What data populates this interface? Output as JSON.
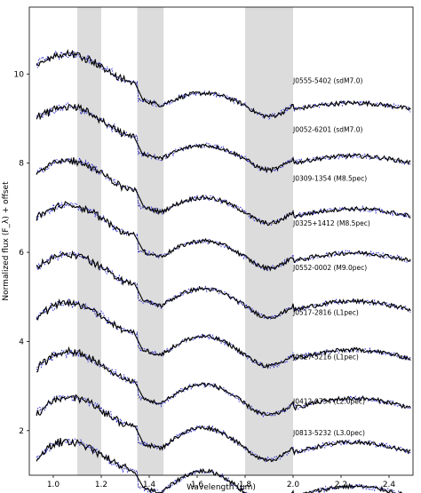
{
  "chart_data": {
    "type": "line",
    "xlabel": "Wavelength (μm)",
    "ylabel": "Normalized flux (F_λ) + offset",
    "xlim": [
      0.9,
      2.5
    ],
    "ylim": [
      1.0,
      11.5
    ],
    "xticks": [
      "1.0",
      "1.2",
      "1.4",
      "1.6",
      "1.8",
      "2.0",
      "2.2",
      "2.4"
    ],
    "yticks": [
      "2",
      "4",
      "6",
      "8",
      "10"
    ],
    "shaded_bands": [
      [
        1.1,
        1.2
      ],
      [
        1.35,
        1.46
      ],
      [
        1.8,
        2.0
      ]
    ],
    "band_color": "#dcdcdc",
    "line_colors": {
      "observed": "#000000",
      "template": "#2020d0",
      "model": "#555555"
    },
    "label_x": 2.0,
    "series": [
      {
        "label": "J0555-5402 (sdM7.0)",
        "offset": 10.0,
        "label_y": 9.8
      },
      {
        "label": "J0052-6201 (sdM7.0)",
        "offset": 8.8,
        "label_y": 8.7
      },
      {
        "label": "J0309-1354 (M8.5pec)",
        "offset": 7.6,
        "label_y": 7.6
      },
      {
        "label": "J0325+1412 (M8.5pec)",
        "offset": 6.6,
        "label_y": 6.6
      },
      {
        "label": "J0552-0002 (M9.0pec)",
        "offset": 5.5,
        "label_y": 5.6
      },
      {
        "label": "J0517-2816 (L1pec)",
        "offset": 4.4,
        "label_y": 4.6
      },
      {
        "label": "J0827-5216 (L1pec)",
        "offset": 3.3,
        "label_y": 3.6
      },
      {
        "label": "J0412-0734 (L2.0pec)",
        "offset": 2.3,
        "label_y": 2.6
      },
      {
        "label": "J0813-5232 (L3.0pec)",
        "offset": 1.3,
        "label_y": 1.9
      }
    ]
  }
}
